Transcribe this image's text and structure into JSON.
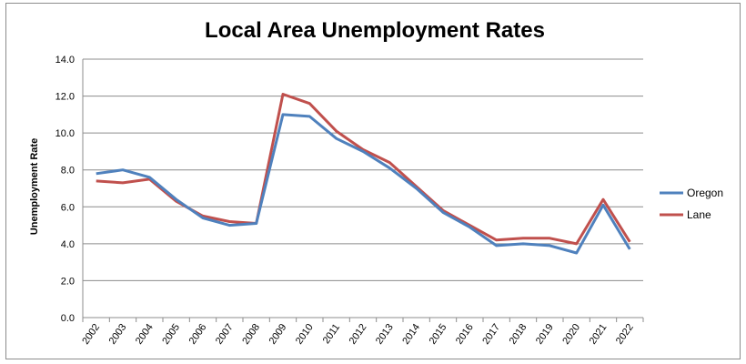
{
  "chart_data": {
    "type": "line",
    "title": "Local Area Unemployment Rates",
    "xlabel": "",
    "ylabel": "Unemployment Rate",
    "ylim": [
      0,
      14
    ],
    "yticks": [
      "0.0",
      "2.0",
      "4.0",
      "6.0",
      "8.0",
      "10.0",
      "12.0",
      "14.0"
    ],
    "categories": [
      "2002",
      "2003",
      "2004",
      "2005",
      "2006",
      "2007",
      "2008",
      "2009",
      "2010",
      "2011",
      "2012",
      "2013",
      "2014",
      "2015",
      "2016",
      "2017",
      "2018",
      "2019",
      "2020",
      "2021",
      "2022"
    ],
    "grid": true,
    "legend_position": "right",
    "series": [
      {
        "name": "Oregon",
        "color": "#4f81bd",
        "values": [
          7.8,
          8.0,
          7.6,
          6.4,
          5.4,
          5.0,
          5.1,
          11.0,
          10.9,
          9.7,
          9.0,
          8.1,
          7.0,
          5.7,
          4.9,
          3.9,
          4.0,
          3.9,
          3.5,
          6.1,
          3.7
        ]
      },
      {
        "name": "Lane",
        "color": "#c0504d",
        "values": [
          7.4,
          7.3,
          7.5,
          6.3,
          5.5,
          5.2,
          5.1,
          12.1,
          11.6,
          10.1,
          9.1,
          8.4,
          7.1,
          5.8,
          5.0,
          4.2,
          4.3,
          4.3,
          4.0,
          6.4,
          4.1
        ]
      }
    ]
  }
}
